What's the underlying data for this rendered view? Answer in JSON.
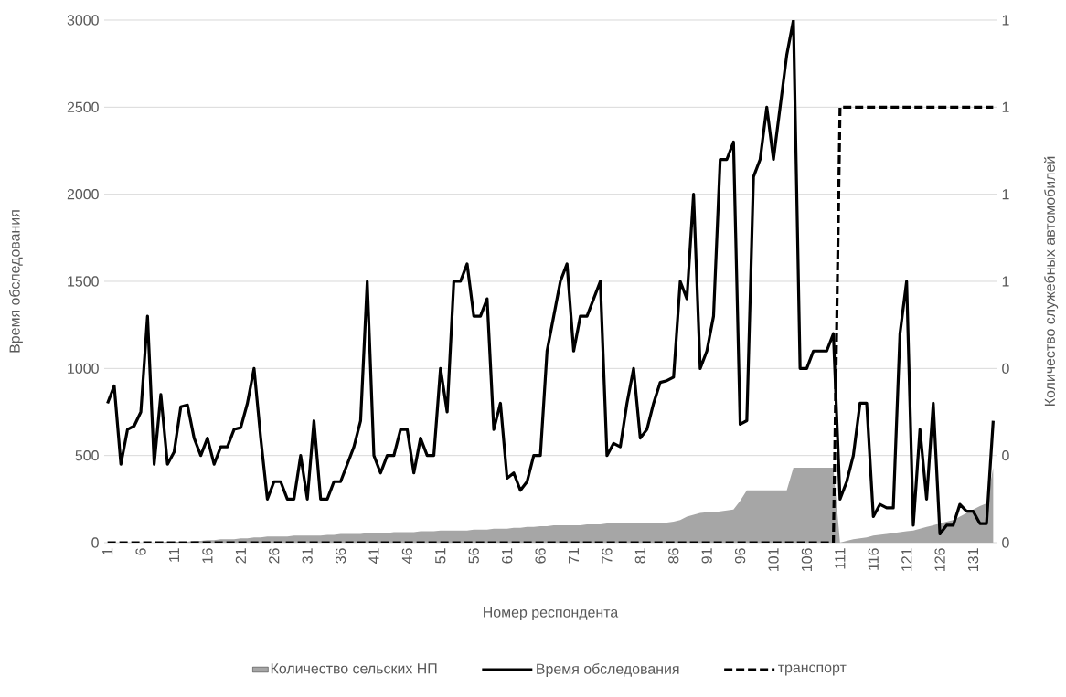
{
  "chart_data": {
    "type": "line",
    "xlabel": "Номер респондента",
    "ylabel": "Время обследования",
    "y2label": "Количество служебных автомобилей",
    "categories": [
      "1",
      null,
      null,
      null,
      null,
      "6",
      null,
      null,
      null,
      null,
      "11",
      null,
      null,
      null,
      null,
      "16",
      null,
      null,
      null,
      null,
      "21",
      null,
      null,
      null,
      null,
      "26",
      null,
      null,
      null,
      null,
      "31",
      null,
      null,
      null,
      null,
      "36",
      null,
      null,
      null,
      null,
      "41",
      null,
      null,
      null,
      null,
      "46",
      null,
      null,
      null,
      null,
      "51",
      null,
      null,
      null,
      null,
      "56",
      null,
      null,
      null,
      null,
      "61",
      null,
      null,
      null,
      null,
      "66",
      null,
      null,
      null,
      null,
      "71",
      null,
      null,
      null,
      null,
      "76",
      null,
      null,
      null,
      null,
      "81",
      null,
      null,
      null,
      null,
      "86",
      null,
      null,
      null,
      null,
      "91",
      null,
      null,
      null,
      null,
      "96",
      null,
      null,
      null,
      null,
      "101",
      null,
      null,
      null,
      null,
      "106",
      null,
      null,
      null,
      null,
      "111",
      null,
      null,
      null,
      null,
      "116",
      null,
      null,
      null,
      null,
      "121",
      null,
      null,
      null,
      null,
      "126",
      null,
      null,
      null,
      null,
      "131",
      null,
      null,
      null
    ],
    "ylim": [
      0,
      3000
    ],
    "yticks": [
      0,
      500,
      1000,
      1500,
      2000,
      2500,
      3000
    ],
    "y2lim": [
      0,
      1.2
    ],
    "y2ticks": [
      0,
      {
        "value": 0.2,
        "label": "0"
      },
      {
        "value": 0.4,
        "label": "0"
      },
      {
        "value": 0.6,
        "label": "1"
      },
      {
        "value": 0.8,
        "label": "1"
      },
      {
        "value": 1,
        "label": "1"
      },
      {
        "value": 1.2,
        "label": "1"
      }
    ],
    "grid": "y",
    "legend": "bottom",
    "marker": "none",
    "series": [
      {
        "name": "Количество сельских НП",
        "type": "area",
        "color": "#a6a6a6",
        "values": [
          0,
          0,
          0,
          0,
          0,
          0,
          0,
          0,
          0,
          5,
          5,
          5,
          5,
          10,
          10,
          15,
          15,
          20,
          20,
          20,
          25,
          25,
          30,
          30,
          35,
          35,
          35,
          35,
          40,
          40,
          40,
          40,
          40,
          45,
          45,
          50,
          50,
          50,
          50,
          55,
          55,
          55,
          55,
          60,
          60,
          60,
          60,
          65,
          65,
          65,
          70,
          70,
          70,
          70,
          70,
          75,
          75,
          75,
          80,
          80,
          80,
          85,
          85,
          90,
          90,
          95,
          95,
          100,
          100,
          100,
          100,
          100,
          105,
          105,
          105,
          110,
          110,
          110,
          110,
          110,
          110,
          110,
          115,
          115,
          115,
          120,
          130,
          150,
          160,
          170,
          175,
          175,
          180,
          185,
          190,
          240,
          300,
          300,
          300,
          300,
          300,
          300,
          300,
          430,
          430,
          430,
          430,
          430,
          430,
          430,
          0,
          10,
          20,
          25,
          30,
          40,
          45,
          50,
          55,
          60,
          65,
          70,
          80,
          90,
          100,
          110,
          120,
          130,
          150,
          170,
          190,
          210,
          225,
          430
        ]
      },
      {
        "name": "Время обследования",
        "type": "line",
        "color": "#000000",
        "values": [
          800,
          900,
          450,
          650,
          670,
          750,
          1300,
          450,
          850,
          450,
          520,
          780,
          790,
          600,
          500,
          600,
          450,
          550,
          550,
          650,
          660,
          800,
          1000,
          600,
          250,
          350,
          350,
          250,
          250,
          500,
          250,
          700,
          250,
          250,
          350,
          350,
          450,
          550,
          700,
          1500,
          500,
          400,
          500,
          500,
          650,
          650,
          400,
          600,
          500,
          500,
          1000,
          750,
          1500,
          1500,
          1600,
          1300,
          1300,
          1400,
          650,
          800,
          370,
          400,
          300,
          350,
          500,
          500,
          1100,
          1300,
          1500,
          1600,
          1100,
          1300,
          1300,
          1400,
          1500,
          500,
          570,
          550,
          800,
          1000,
          600,
          650,
          800,
          920,
          930,
          950,
          1500,
          1400,
          2000,
          1000,
          1100,
          1300,
          2200,
          2200,
          2300,
          680,
          700,
          2100,
          2200,
          2500,
          2200,
          2500,
          2800,
          3000,
          1000,
          1000,
          1100,
          1100,
          1100,
          1200,
          250,
          350,
          500,
          800,
          800,
          150,
          220,
          200,
          200,
          1200,
          1500,
          100,
          650,
          250,
          800,
          50,
          100,
          100,
          220,
          180,
          180,
          110,
          110,
          700
        ]
      },
      {
        "name": "транспорт",
        "type": "line",
        "axis": "y2",
        "line_style": "dashed",
        "color": "#000000",
        "values": [
          0,
          0,
          0,
          0,
          0,
          0,
          0,
          0,
          0,
          0,
          0,
          0,
          0,
          0,
          0,
          0,
          0,
          0,
          0,
          0,
          0,
          0,
          0,
          0,
          0,
          0,
          0,
          0,
          0,
          0,
          0,
          0,
          0,
          0,
          0,
          0,
          0,
          0,
          0,
          0,
          0,
          0,
          0,
          0,
          0,
          0,
          0,
          0,
          0,
          0,
          0,
          0,
          0,
          0,
          0,
          0,
          0,
          0,
          0,
          0,
          0,
          0,
          0,
          0,
          0,
          0,
          0,
          0,
          0,
          0,
          0,
          0,
          0,
          0,
          0,
          0,
          0,
          0,
          0,
          0,
          0,
          0,
          0,
          0,
          0,
          0,
          0,
          0,
          0,
          0,
          0,
          0,
          0,
          0,
          0,
          0,
          0,
          0,
          0,
          0,
          0,
          0,
          0,
          0,
          0,
          0,
          0,
          0,
          0,
          0,
          1,
          1,
          1,
          1,
          1,
          1,
          1,
          1,
          1,
          1,
          1,
          1,
          1,
          1,
          1,
          1,
          1,
          1,
          1,
          1,
          1,
          1,
          1,
          1
        ]
      }
    ]
  }
}
